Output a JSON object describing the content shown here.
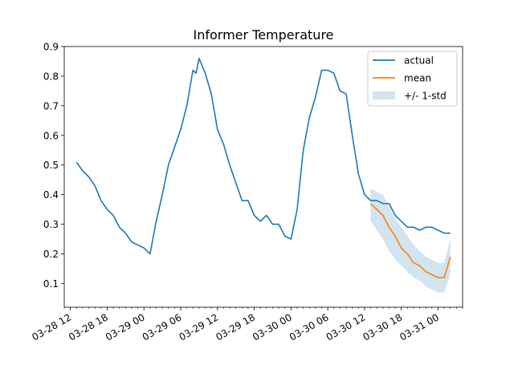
{
  "chart_data": {
    "type": "line",
    "title": "Informer Temperature",
    "xlabel": "",
    "ylabel": "",
    "x_axis": {
      "type": "datetime",
      "range": [
        "2024-03-28 11:00",
        "2024-03-31 04:00"
      ],
      "major_ticks": [
        "03-28 12",
        "03-28 18",
        "03-29 00",
        "03-29 06",
        "03-29 12",
        "03-29 18",
        "03-30 00",
        "03-30 06",
        "03-30 12",
        "03-30 18",
        "03-31 00"
      ],
      "major_tick_times": [
        "2024-03-28 12:00",
        "2024-03-28 18:00",
        "2024-03-29 00:00",
        "2024-03-29 06:00",
        "2024-03-29 12:00",
        "2024-03-29 18:00",
        "2024-03-30 00:00",
        "2024-03-30 06:00",
        "2024-03-30 12:00",
        "2024-03-30 18:00",
        "2024-03-31 00:00"
      ],
      "minor_tick_every_hours": 1
    },
    "y_axis": {
      "range": [
        0.02,
        0.9
      ],
      "ticks": [
        "0.1",
        "0.2",
        "0.3",
        "0.4",
        "0.5",
        "0.6",
        "0.7",
        "0.8",
        "0.9"
      ]
    },
    "grid": false,
    "legend": {
      "position": "top-right",
      "entries": [
        "actual",
        "mean",
        "+/- 1-std"
      ]
    },
    "series": [
      {
        "name": "actual",
        "color": "#1f77b4",
        "x": [
          "2024-03-28 13:00",
          "2024-03-28 14:00",
          "2024-03-28 15:00",
          "2024-03-28 16:00",
          "2024-03-28 17:00",
          "2024-03-28 18:00",
          "2024-03-28 19:00",
          "2024-03-28 20:00",
          "2024-03-28 21:00",
          "2024-03-28 22:00",
          "2024-03-28 23:00",
          "2024-03-29 00:00",
          "2024-03-29 01:00",
          "2024-03-29 02:00",
          "2024-03-29 03:00",
          "2024-03-29 04:00",
          "2024-03-29 05:00",
          "2024-03-29 06:00",
          "2024-03-29 07:00",
          "2024-03-29 07:30",
          "2024-03-29 08:00",
          "2024-03-29 08:30",
          "2024-03-29 09:00",
          "2024-03-29 10:00",
          "2024-03-29 11:00",
          "2024-03-29 12:00",
          "2024-03-29 13:00",
          "2024-03-29 14:00",
          "2024-03-29 15:00",
          "2024-03-29 16:00",
          "2024-03-29 17:00",
          "2024-03-29 18:00",
          "2024-03-29 19:00",
          "2024-03-29 20:00",
          "2024-03-29 21:00",
          "2024-03-29 22:00",
          "2024-03-29 23:00",
          "2024-03-30 00:00",
          "2024-03-30 01:00",
          "2024-03-30 02:00",
          "2024-03-30 03:00",
          "2024-03-30 04:00",
          "2024-03-30 05:00",
          "2024-03-30 06:00",
          "2024-03-30 07:00",
          "2024-03-30 08:00",
          "2024-03-30 09:00",
          "2024-03-30 10:00",
          "2024-03-30 11:00",
          "2024-03-30 12:00",
          "2024-03-30 13:00",
          "2024-03-30 14:00",
          "2024-03-30 15:00",
          "2024-03-30 16:00",
          "2024-03-30 17:00",
          "2024-03-30 18:00",
          "2024-03-30 19:00",
          "2024-03-30 20:00",
          "2024-03-30 21:00",
          "2024-03-30 22:00",
          "2024-03-30 23:00",
          "2024-03-31 00:00",
          "2024-03-31 01:00",
          "2024-03-31 02:00"
        ],
        "y": [
          0.51,
          0.48,
          0.46,
          0.43,
          0.38,
          0.35,
          0.33,
          0.29,
          0.27,
          0.24,
          0.23,
          0.22,
          0.2,
          0.31,
          0.4,
          0.5,
          0.56,
          0.62,
          0.7,
          0.76,
          0.82,
          0.81,
          0.86,
          0.81,
          0.74,
          0.62,
          0.57,
          0.5,
          0.44,
          0.38,
          0.38,
          0.33,
          0.31,
          0.33,
          0.3,
          0.3,
          0.26,
          0.25,
          0.35,
          0.55,
          0.66,
          0.73,
          0.82,
          0.82,
          0.81,
          0.75,
          0.74,
          0.6,
          0.47,
          0.4,
          0.38,
          0.38,
          0.37,
          0.37,
          0.33,
          0.31,
          0.29,
          0.29,
          0.28,
          0.29,
          0.29,
          0.28,
          0.27,
          0.27
        ]
      },
      {
        "name": "mean",
        "color": "#ff7f0e",
        "x": [
          "2024-03-30 13:00",
          "2024-03-30 14:00",
          "2024-03-30 15:00",
          "2024-03-30 16:00",
          "2024-03-30 17:00",
          "2024-03-30 18:00",
          "2024-03-30 19:00",
          "2024-03-30 20:00",
          "2024-03-30 21:00",
          "2024-03-30 22:00",
          "2024-03-30 23:00",
          "2024-03-31 00:00",
          "2024-03-31 01:00",
          "2024-03-31 02:00"
        ],
        "y": [
          0.37,
          0.35,
          0.33,
          0.29,
          0.26,
          0.22,
          0.2,
          0.17,
          0.16,
          0.14,
          0.13,
          0.12,
          0.12,
          0.19
        ]
      }
    ],
    "band": {
      "name": "+/- 1-std",
      "color": "#1f77b4",
      "opacity": 0.2,
      "x": [
        "2024-03-30 13:00",
        "2024-03-30 14:00",
        "2024-03-30 15:00",
        "2024-03-30 16:00",
        "2024-03-30 17:00",
        "2024-03-30 18:00",
        "2024-03-30 19:00",
        "2024-03-30 20:00",
        "2024-03-30 21:00",
        "2024-03-30 22:00",
        "2024-03-30 23:00",
        "2024-03-31 00:00",
        "2024-03-31 01:00",
        "2024-03-31 02:00"
      ],
      "lower": [
        0.31,
        0.28,
        0.25,
        0.21,
        0.18,
        0.16,
        0.14,
        0.12,
        0.11,
        0.09,
        0.08,
        0.07,
        0.07,
        0.13
      ],
      "upper": [
        0.42,
        0.41,
        0.4,
        0.36,
        0.32,
        0.29,
        0.26,
        0.23,
        0.21,
        0.19,
        0.18,
        0.17,
        0.17,
        0.25
      ]
    }
  }
}
